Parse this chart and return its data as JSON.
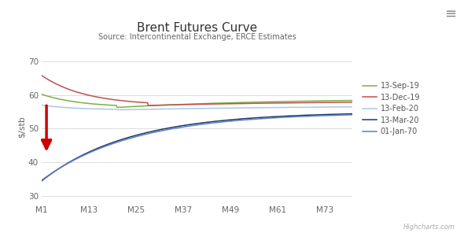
{
  "title": "Brent Futures Curve",
  "subtitle": "Source: Intercontinental Exchange, ERCE Estimates",
  "ylabel": "$/stb",
  "watermark": "Highcharts.com",
  "xticks": [
    1,
    13,
    25,
    37,
    49,
    61,
    73
  ],
  "xtick_labels": [
    "M1",
    "M13",
    "M25",
    "M37",
    "M49",
    "M61",
    "M73"
  ],
  "yticks": [
    30,
    40,
    50,
    60,
    70
  ],
  "ylim": [
    28,
    73
  ],
  "xlim": [
    1,
    80
  ],
  "background_color": "#ffffff",
  "grid_color": "#dddddd",
  "series": [
    {
      "label": "13-Sep-19",
      "color": "#7cb040",
      "p0": 60.2,
      "p_mid": 56.3,
      "p_mid_x": 20,
      "p_end": 59.0,
      "rate1": 0.1,
      "rate2": 0.025
    },
    {
      "label": "13-Dec-19",
      "color": "#c0504d",
      "p0": 65.8,
      "p_mid": 56.9,
      "p_mid_x": 28,
      "p_end": 58.3,
      "rate1": 0.09,
      "rate2": 0.022
    },
    {
      "label": "13-Feb-20",
      "color": "#aac8e0",
      "p0": 57.0,
      "p_mid": 55.6,
      "p_mid_x": 20,
      "p_end": 57.1,
      "rate1": 0.12,
      "rate2": 0.015
    },
    {
      "label": "13-Mar-20",
      "color": "#1f3864",
      "p0": 34.5,
      "p_end": 55.0,
      "rate": 0.045
    },
    {
      "label": "01-Jan-70",
      "color": "#5b7fc1",
      "p0": 34.7,
      "p_end": 54.8,
      "rate": 0.043
    }
  ],
  "arrow": {
    "x": 2.2,
    "y_start": 57.5,
    "y_end": 42.5,
    "color": "#cc0000",
    "lw": 2.5,
    "mutation_scale": 20
  }
}
